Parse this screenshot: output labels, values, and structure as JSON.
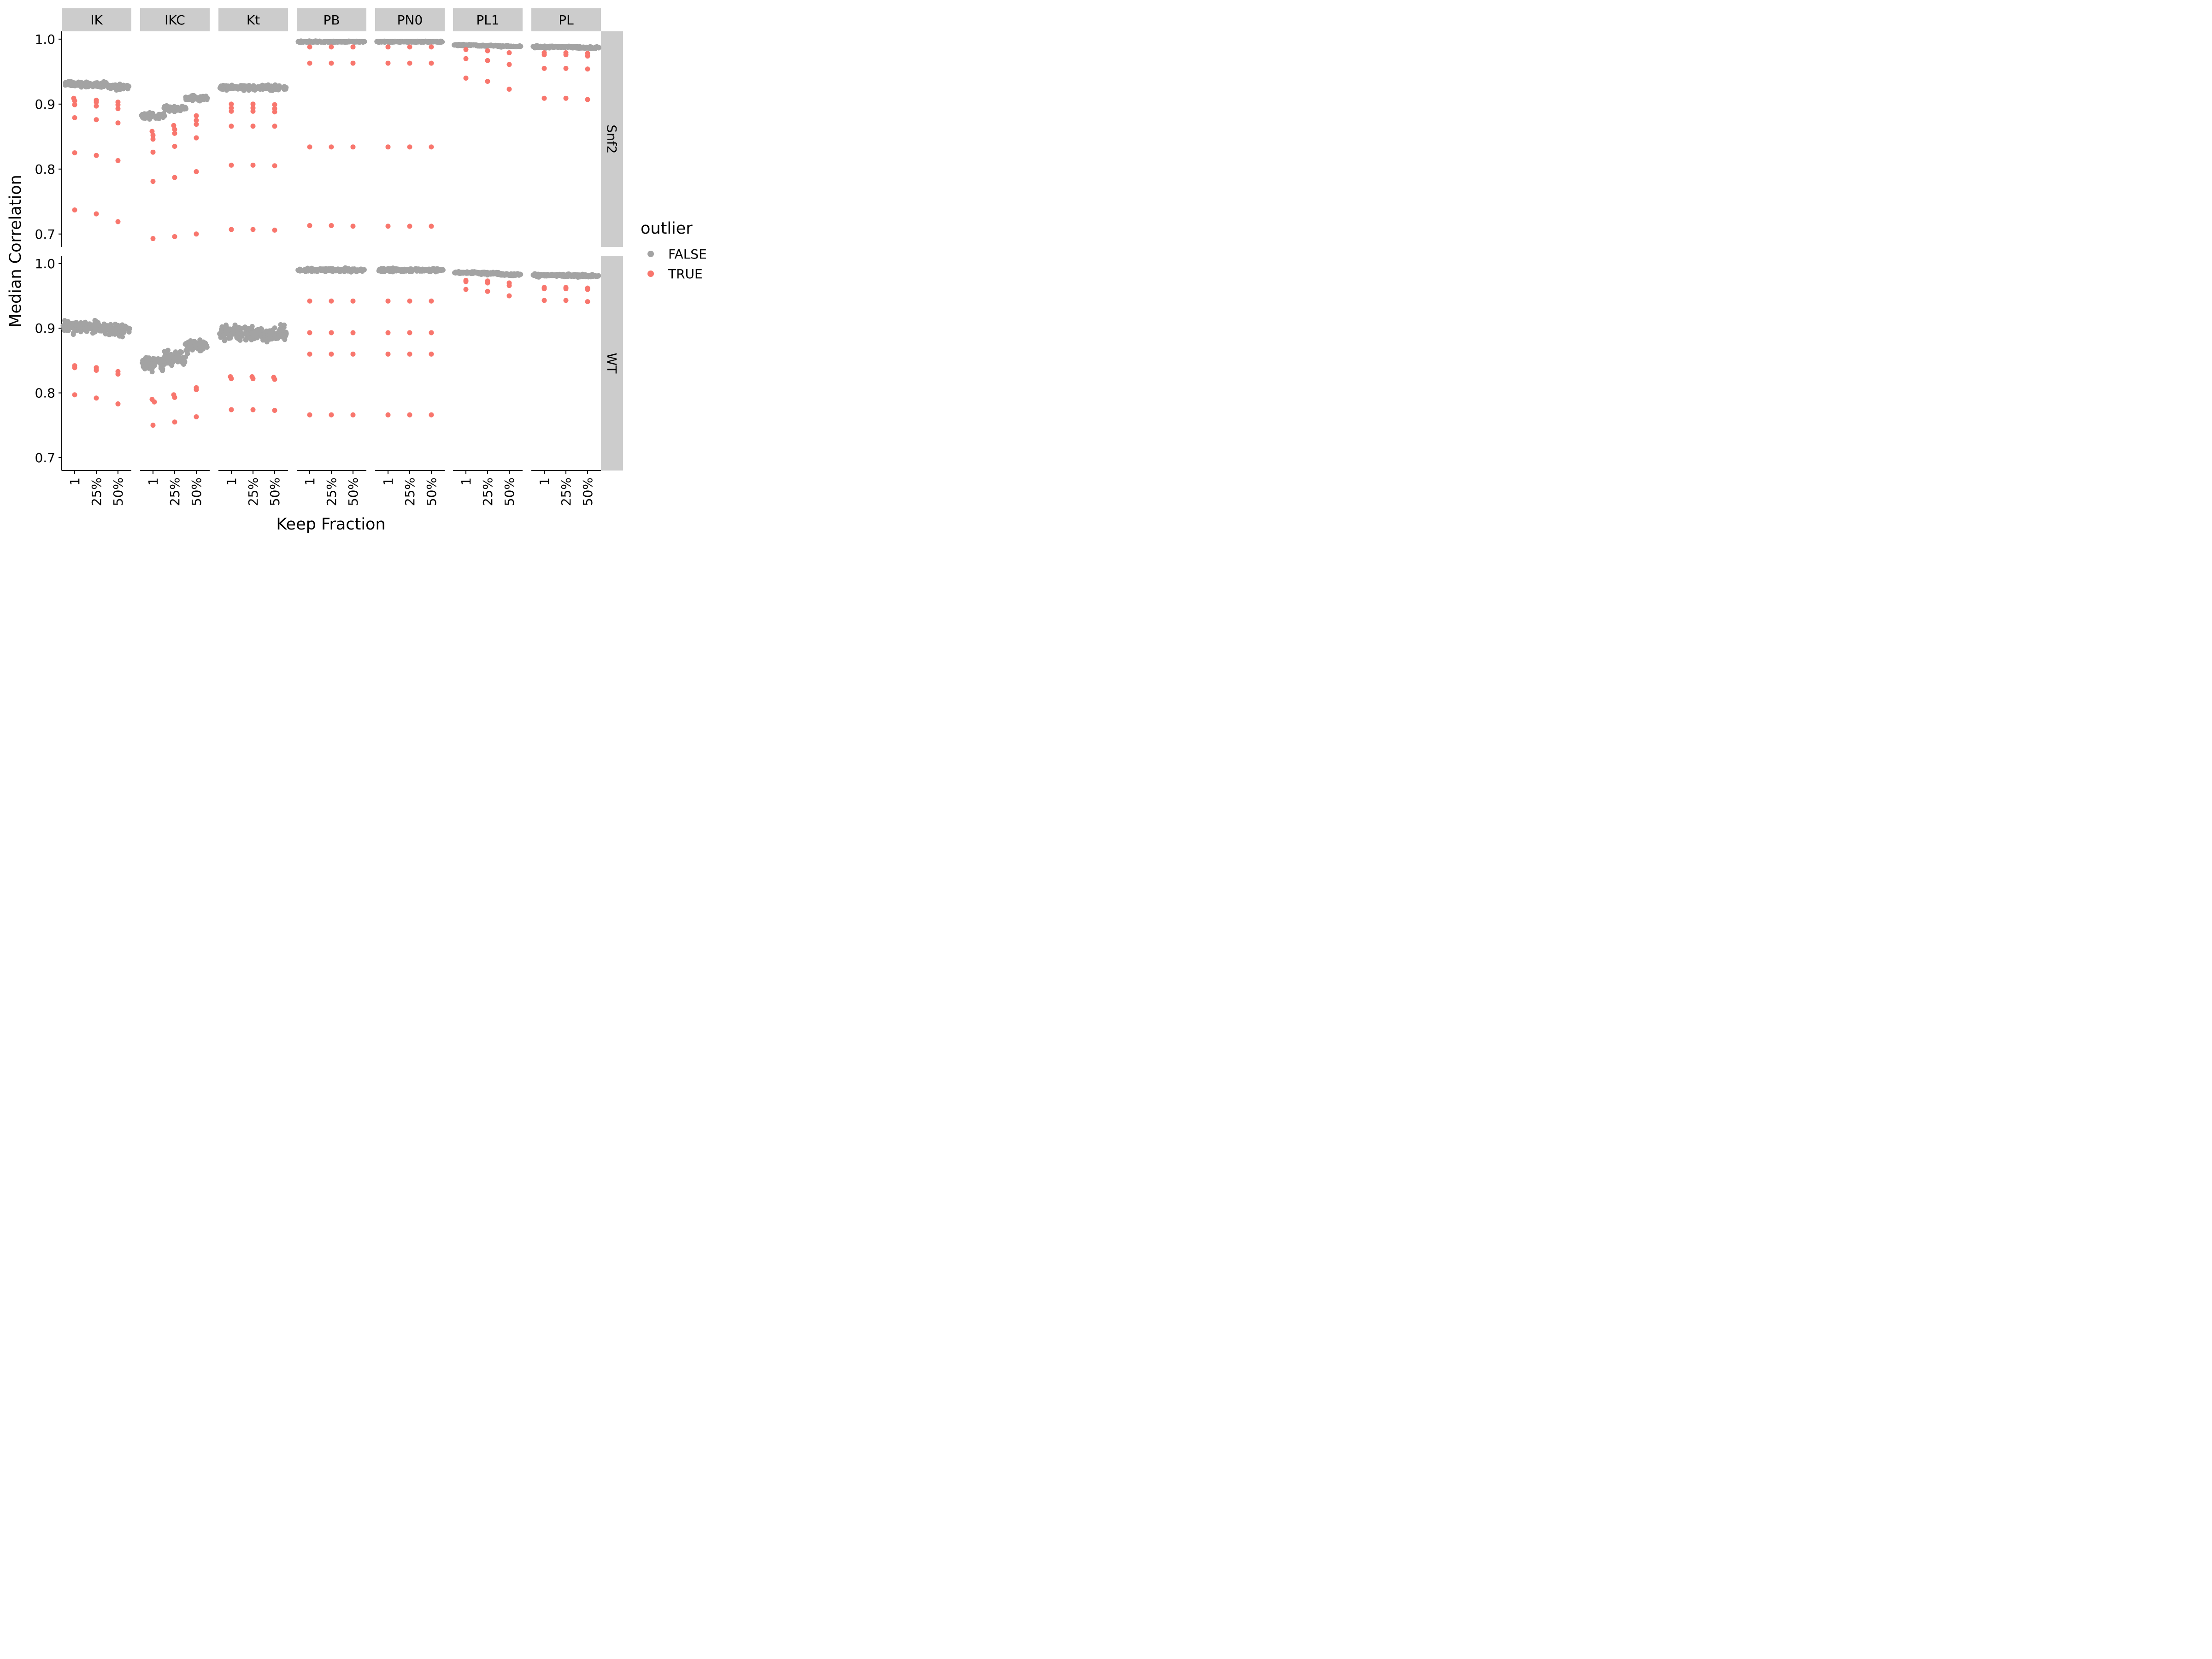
{
  "chart_data": {
    "type": "scatter",
    "title": "",
    "xlabel": "Keep Fraction",
    "ylabel": "Median Correlation",
    "x_categories": [
      "1",
      "25%",
      "50%"
    ],
    "facet_columns": [
      "IK",
      "IKC",
      "Kt",
      "PB",
      "PN0",
      "PL1",
      "PL"
    ],
    "facet_rows": [
      "Snf2",
      "WT"
    ],
    "y_ticks": [
      0.7,
      0.8,
      0.9,
      1.0
    ],
    "ylim": [
      0.68,
      1.012
    ],
    "grid": false,
    "legend": {
      "title": "outlier",
      "position": "right",
      "entries": [
        {
          "label": "FALSE",
          "color": "#A3A3A3"
        },
        {
          "label": "TRUE",
          "color": "#F8766D"
        }
      ]
    },
    "colors": {
      "FALSE": "#A3A3A3",
      "TRUE": "#F8766D",
      "strip": "#CCCCCC"
    },
    "panels": [
      {
        "row": "Snf2",
        "col": "IK",
        "groups": [
          {
            "x": "1",
            "false_center": 0.931,
            "false_spread": 0.008,
            "true": [
              0.909,
              0.905,
              0.899,
              0.879,
              0.825,
              0.737
            ]
          },
          {
            "x": "25%",
            "false_center": 0.93,
            "false_spread": 0.008,
            "true": [
              0.906,
              0.903,
              0.897,
              0.876,
              0.821,
              0.731
            ]
          },
          {
            "x": "50%",
            "false_center": 0.927,
            "false_spread": 0.008,
            "true": [
              0.903,
              0.899,
              0.893,
              0.871,
              0.813,
              0.719
            ]
          }
        ]
      },
      {
        "row": "Snf2",
        "col": "IKC",
        "groups": [
          {
            "x": "1",
            "false_center": 0.882,
            "false_spread": 0.01,
            "true": [
              0.858,
              0.852,
              0.846,
              0.826,
              0.781,
              0.693
            ]
          },
          {
            "x": "25%",
            "false_center": 0.893,
            "false_spread": 0.009,
            "true": [
              0.867,
              0.861,
              0.855,
              0.835,
              0.787,
              0.696
            ]
          },
          {
            "x": "50%",
            "false_center": 0.909,
            "false_spread": 0.008,
            "true": [
              0.882,
              0.875,
              0.869,
              0.848,
              0.796,
              0.7
            ]
          }
        ]
      },
      {
        "row": "Snf2",
        "col": "Kt",
        "groups": [
          {
            "x": "1",
            "false_center": 0.925,
            "false_spread": 0.008,
            "true": [
              0.9,
              0.894,
              0.889,
              0.866,
              0.806,
              0.707
            ]
          },
          {
            "x": "25%",
            "false_center": 0.925,
            "false_spread": 0.008,
            "true": [
              0.9,
              0.894,
              0.889,
              0.866,
              0.806,
              0.707
            ]
          },
          {
            "x": "50%",
            "false_center": 0.925,
            "false_spread": 0.008,
            "true": [
              0.899,
              0.893,
              0.888,
              0.866,
              0.805,
              0.706
            ]
          }
        ]
      },
      {
        "row": "Snf2",
        "col": "PB",
        "groups": [
          {
            "x": "1",
            "false_center": 0.996,
            "false_spread": 0.002,
            "true": [
              0.988,
              0.963,
              0.834,
              0.713
            ]
          },
          {
            "x": "25%",
            "false_center": 0.996,
            "false_spread": 0.002,
            "true": [
              0.988,
              0.963,
              0.834,
              0.713
            ]
          },
          {
            "x": "50%",
            "false_center": 0.996,
            "false_spread": 0.002,
            "true": [
              0.988,
              0.963,
              0.834,
              0.712
            ]
          }
        ]
      },
      {
        "row": "Snf2",
        "col": "PN0",
        "groups": [
          {
            "x": "1",
            "false_center": 0.996,
            "false_spread": 0.002,
            "true": [
              0.988,
              0.963,
              0.834,
              0.712
            ]
          },
          {
            "x": "25%",
            "false_center": 0.996,
            "false_spread": 0.002,
            "true": [
              0.988,
              0.963,
              0.834,
              0.712
            ]
          },
          {
            "x": "50%",
            "false_center": 0.996,
            "false_spread": 0.002,
            "true": [
              0.988,
              0.963,
              0.834,
              0.712
            ]
          }
        ]
      },
      {
        "row": "Snf2",
        "col": "PL1",
        "groups": [
          {
            "x": "1",
            "false_center": 0.991,
            "false_spread": 0.002,
            "true": [
              0.984,
              0.97,
              0.94
            ]
          },
          {
            "x": "25%",
            "false_center": 0.99,
            "false_spread": 0.002,
            "true": [
              0.982,
              0.967,
              0.935
            ]
          },
          {
            "x": "50%",
            "false_center": 0.989,
            "false_spread": 0.002,
            "true": [
              0.979,
              0.961,
              0.923
            ]
          }
        ]
      },
      {
        "row": "Snf2",
        "col": "PL",
        "groups": [
          {
            "x": "1",
            "false_center": 0.988,
            "false_spread": 0.003,
            "true": [
              0.979,
              0.976,
              0.955,
              0.909
            ]
          },
          {
            "x": "25%",
            "false_center": 0.988,
            "false_spread": 0.003,
            "true": [
              0.979,
              0.976,
              0.955,
              0.909
            ]
          },
          {
            "x": "50%",
            "false_center": 0.987,
            "false_spread": 0.003,
            "true": [
              0.978,
              0.974,
              0.954,
              0.907
            ]
          }
        ]
      },
      {
        "row": "WT",
        "col": "IK",
        "groups": [
          {
            "x": "1",
            "false_center": 0.903,
            "false_spread": 0.02,
            "true": [
              0.842,
              0.839,
              0.797
            ]
          },
          {
            "x": "25%",
            "false_center": 0.901,
            "false_spread": 0.02,
            "true": [
              0.839,
              0.835,
              0.792
            ]
          },
          {
            "x": "50%",
            "false_center": 0.898,
            "false_spread": 0.021,
            "true": [
              0.833,
              0.829,
              0.783
            ]
          }
        ]
      },
      {
        "row": "WT",
        "col": "IKC",
        "groups": [
          {
            "x": "1",
            "false_center": 0.846,
            "false_spread": 0.021,
            "true": [
              0.79,
              0.786,
              0.75
            ]
          },
          {
            "x": "25%",
            "false_center": 0.854,
            "false_spread": 0.02,
            "true": [
              0.797,
              0.793,
              0.755
            ]
          },
          {
            "x": "50%",
            "false_center": 0.873,
            "false_spread": 0.02,
            "true": [
              0.808,
              0.805,
              0.763
            ]
          }
        ]
      },
      {
        "row": "WT",
        "col": "Kt",
        "groups": [
          {
            "x": "1",
            "false_center": 0.893,
            "false_spread": 0.023,
            "true": [
              0.825,
              0.822,
              0.774
            ]
          },
          {
            "x": "25%",
            "false_center": 0.892,
            "false_spread": 0.023,
            "true": [
              0.825,
              0.822,
              0.774
            ]
          },
          {
            "x": "50%",
            "false_center": 0.891,
            "false_spread": 0.023,
            "true": [
              0.824,
              0.821,
              0.773
            ]
          }
        ]
      },
      {
        "row": "WT",
        "col": "PB",
        "groups": [
          {
            "x": "1",
            "false_center": 0.99,
            "false_spread": 0.005,
            "true": [
              0.942,
              0.893,
              0.86,
              0.766
            ]
          },
          {
            "x": "25%",
            "false_center": 0.99,
            "false_spread": 0.005,
            "true": [
              0.942,
              0.893,
              0.86,
              0.766
            ]
          },
          {
            "x": "50%",
            "false_center": 0.99,
            "false_spread": 0.005,
            "true": [
              0.942,
              0.893,
              0.86,
              0.766
            ]
          }
        ]
      },
      {
        "row": "WT",
        "col": "PN0",
        "groups": [
          {
            "x": "1",
            "false_center": 0.99,
            "false_spread": 0.005,
            "true": [
              0.942,
              0.893,
              0.86,
              0.766
            ]
          },
          {
            "x": "25%",
            "false_center": 0.99,
            "false_spread": 0.005,
            "true": [
              0.942,
              0.893,
              0.86,
              0.766
            ]
          },
          {
            "x": "50%",
            "false_center": 0.99,
            "false_spread": 0.005,
            "true": [
              0.942,
              0.893,
              0.86,
              0.766
            ]
          }
        ]
      },
      {
        "row": "WT",
        "col": "PL1",
        "groups": [
          {
            "x": "1",
            "false_center": 0.986,
            "false_spread": 0.003,
            "true": [
              0.974,
              0.972,
              0.96
            ]
          },
          {
            "x": "25%",
            "false_center": 0.985,
            "false_spread": 0.004,
            "true": [
              0.973,
              0.97,
              0.957
            ]
          },
          {
            "x": "50%",
            "false_center": 0.983,
            "false_spread": 0.004,
            "true": [
              0.97,
              0.966,
              0.95
            ]
          }
        ]
      },
      {
        "row": "WT",
        "col": "PL",
        "groups": [
          {
            "x": "1",
            "false_center": 0.982,
            "false_spread": 0.004,
            "true": [
              0.963,
              0.961,
              0.943
            ]
          },
          {
            "x": "25%",
            "false_center": 0.982,
            "false_spread": 0.004,
            "true": [
              0.963,
              0.961,
              0.943
            ]
          },
          {
            "x": "50%",
            "false_center": 0.981,
            "false_spread": 0.004,
            "true": [
              0.962,
              0.96,
              0.941
            ]
          }
        ]
      }
    ]
  }
}
